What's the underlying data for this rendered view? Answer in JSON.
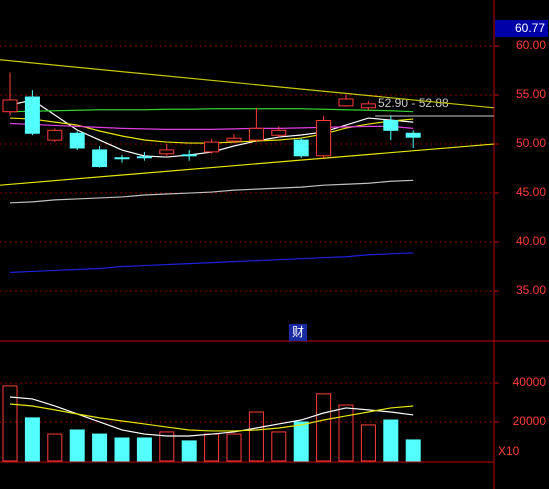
{
  "chart_data": {
    "type": "candlestick",
    "up_color": "#ff3c3c",
    "down_color": "#54ffff",
    "ylim": [
      29.9,
      64.7
    ],
    "yticks": [
      {
        "value": 35,
        "label": "35.00"
      },
      {
        "value": 40,
        "label": "40.00"
      },
      {
        "value": 45,
        "label": "45.00"
      },
      {
        "value": 50,
        "label": "50.00"
      },
      {
        "value": 55,
        "label": "55.00"
      },
      {
        "value": 60,
        "label": "60.00"
      }
    ],
    "grid": true,
    "current_label": 60.77,
    "marker_label": "财",
    "price_label": "52.90 - 52.88",
    "open": [
      53.3,
      54.8,
      50.4,
      51.1,
      49.4,
      48.6,
      48.7,
      49.0,
      48.9,
      49.2,
      50.3,
      50.4,
      50.9,
      50.4,
      48.8,
      53.9,
      53.7,
      52.4,
      51.1
    ],
    "high": [
      57.3,
      55.5,
      51.6,
      51.3,
      49.8,
      48.9,
      49.2,
      50.0,
      49.4,
      50.5,
      51.0,
      53.7,
      51.8,
      50.6,
      52.9,
      55.0,
      54.4,
      52.9,
      51.4
    ],
    "low": [
      52.9,
      50.9,
      50.2,
      49.4,
      47.6,
      48.1,
      48.3,
      48.8,
      48.3,
      49.0,
      50.1,
      50.2,
      50.7,
      48.6,
      48.6,
      53.8,
      53.5,
      50.4,
      49.6
    ],
    "close": [
      54.5,
      51.1,
      51.4,
      49.6,
      47.7,
      48.5,
      48.6,
      49.4,
      48.8,
      50.2,
      50.6,
      51.6,
      51.4,
      48.8,
      52.4,
      54.6,
      54.1,
      51.4,
      50.7
    ],
    "averages": [
      {
        "color": "#ffffff",
        "values": [
          53.98,
          54.49,
          52.96,
          51.43,
          50.41,
          49.39,
          48.78,
          48.67,
          48.88,
          49.18,
          49.8,
          50.31,
          50.71,
          50.92,
          51.22,
          51.94,
          52.65,
          52.45,
          52.24
        ]
      },
      {
        "color": "#e6e600",
        "values": [
          52.65,
          52.55,
          52.24,
          51.94,
          51.33,
          50.82,
          50.41,
          50.2,
          50.1,
          50.1,
          50.2,
          50.31,
          50.41,
          50.61,
          51.02,
          51.63,
          52.04,
          52.35,
          52.55
        ]
      },
      {
        "color": "#e040e0",
        "values": [
          52.1,
          52.0,
          51.9,
          51.8,
          51.7,
          51.6,
          51.55,
          51.5,
          51.5,
          51.5,
          51.55,
          51.6,
          51.6,
          51.65,
          51.7,
          51.75,
          51.8,
          51.8,
          51.6
        ]
      },
      {
        "color": "#30d030",
        "values": [
          53.3,
          53.35,
          53.4,
          53.45,
          53.5,
          53.5,
          53.5,
          53.55,
          53.55,
          53.6,
          53.6,
          53.6,
          53.6,
          53.6,
          53.55,
          53.5,
          53.45,
          53.4,
          53.3
        ]
      },
      {
        "color": "#c0c0c0",
        "values": [
          44.0,
          44.1,
          44.3,
          44.4,
          44.5,
          44.6,
          44.8,
          44.9,
          45.0,
          45.1,
          45.3,
          45.4,
          45.5,
          45.6,
          45.8,
          45.9,
          46.0,
          46.2,
          46.3
        ]
      },
      {
        "color": "#2020e0",
        "values": [
          36.9,
          37.0,
          37.1,
          37.2,
          37.3,
          37.5,
          37.6,
          37.7,
          37.8,
          37.9,
          38.0,
          38.1,
          38.2,
          38.3,
          38.4,
          38.5,
          38.7,
          38.8,
          38.9
        ]
      }
    ],
    "trendlines": [
      {
        "color": "#c8c800",
        "x": [
          -0.45,
          21.6
        ],
        "y": [
          58.6,
          53.7
        ]
      },
      {
        "color": "#e6e600",
        "x": [
          -0.45,
          21.6
        ],
        "y": [
          45.8,
          50.0
        ]
      },
      {
        "color": "#a0a0a0",
        "x": [
          16.3,
          21.6
        ],
        "y": [
          52.86,
          52.86
        ]
      }
    ],
    "volume": {
      "ylim": [
        0,
        61500
      ],
      "yticks": [
        20000,
        40000
      ],
      "unit_label": "X10",
      "values": [
        38500,
        22100,
        13800,
        15900,
        13800,
        11800,
        11800,
        14900,
        10300,
        13800,
        13800,
        25100,
        14900,
        20000,
        34400,
        28700,
        18500,
        21000,
        10800
      ],
      "averages": [
        {
          "color": "#ffffff",
          "values": [
            32800,
            31800,
            28200,
            24100,
            20000,
            15900,
            13800,
            12800,
            12800,
            13800,
            14900,
            16900,
            19000,
            21000,
            24600,
            27200,
            26200,
            25100,
            23600
          ]
        },
        {
          "color": "#e6e600",
          "values": [
            29200,
            28200,
            26200,
            24100,
            22100,
            20500,
            19000,
            17400,
            15900,
            15400,
            15400,
            15900,
            16900,
            18500,
            21000,
            23100,
            25100,
            27200,
            28200
          ]
        }
      ]
    }
  }
}
